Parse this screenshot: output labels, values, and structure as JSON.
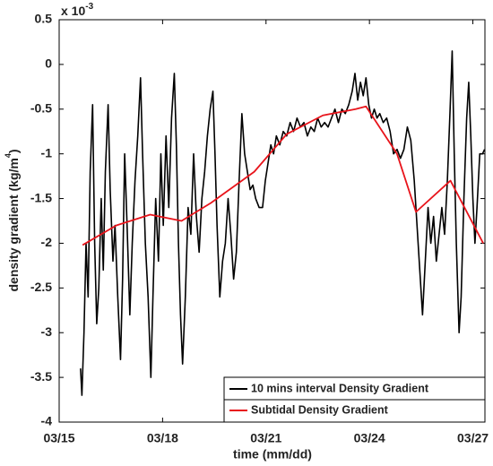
{
  "chart_data": {
    "type": "line",
    "xlabel": "time (mm/dd)",
    "ylabel": {
      "text": "density gradient (kg/m",
      "exponent": "4",
      "end": ")"
    },
    "y_multiplier": {
      "base": "x 10",
      "exponent": "-3"
    },
    "xlim": [
      15,
      27.35
    ],
    "ylim": [
      -4,
      0.5
    ],
    "xticks": [
      {
        "value": 15,
        "label": "03/15"
      },
      {
        "value": 18,
        "label": "03/18"
      },
      {
        "value": 21,
        "label": "03/21"
      },
      {
        "value": 24,
        "label": "03/24"
      },
      {
        "value": 27,
        "label": "03/27"
      }
    ],
    "yticks": [
      0.5,
      0,
      -0.5,
      -1,
      -1.5,
      -2,
      -2.5,
      -3,
      -3.5,
      -4
    ],
    "grid": false,
    "legend": "lower right",
    "series": [
      {
        "name": "10 mins interval Density Gradient",
        "color": "#000000",
        "x": [
          15.62,
          15.66,
          15.72,
          15.78,
          15.84,
          15.9,
          15.97,
          16.03,
          16.09,
          16.15,
          16.22,
          16.28,
          16.34,
          16.42,
          16.48,
          16.56,
          16.62,
          16.7,
          16.78,
          16.84,
          16.9,
          16.97,
          17.05,
          17.12,
          17.2,
          17.28,
          17.36,
          17.42,
          17.5,
          17.58,
          17.66,
          17.72,
          17.8,
          17.88,
          17.95,
          18.02,
          18.1,
          18.18,
          18.26,
          18.34,
          18.4,
          18.46,
          18.52,
          18.58,
          18.66,
          18.74,
          18.82,
          18.9,
          18.98,
          19.06,
          19.14,
          19.22,
          19.3,
          19.38,
          19.46,
          19.52,
          19.58,
          19.66,
          19.74,
          19.82,
          19.9,
          19.98,
          20.06,
          20.14,
          20.22,
          20.3,
          20.38,
          20.46,
          20.54,
          20.62,
          20.7,
          20.8,
          20.9,
          20.98,
          21.06,
          21.14,
          21.22,
          21.3,
          21.4,
          21.5,
          21.6,
          21.7,
          21.8,
          21.9,
          22.0,
          22.1,
          22.2,
          22.3,
          22.4,
          22.5,
          22.6,
          22.7,
          22.8,
          22.9,
          23.0,
          23.1,
          23.2,
          23.3,
          23.4,
          23.5,
          23.58,
          23.66,
          23.74,
          23.82,
          23.9,
          23.98,
          24.06,
          24.14,
          24.22,
          24.3,
          24.4,
          24.5,
          24.6,
          24.7,
          24.8,
          24.9,
          25.0,
          25.1,
          25.2,
          25.3,
          25.38,
          25.46,
          25.54,
          25.62,
          25.7,
          25.78,
          25.86,
          25.94,
          26.02,
          26.1,
          26.18,
          26.26,
          26.34,
          26.4,
          26.46,
          26.52,
          26.6,
          26.66,
          26.74,
          26.82,
          26.88,
          26.94,
          27.0,
          27.06,
          27.12,
          27.2,
          27.28,
          27.34
        ],
        "values": [
          -3.4,
          -3.7,
          -3.0,
          -2.0,
          -2.6,
          -1.2,
          -0.45,
          -2.0,
          -2.9,
          -2.5,
          -1.5,
          -2.3,
          -1.2,
          -0.45,
          -1.4,
          -2.2,
          -1.8,
          -2.6,
          -3.3,
          -2.4,
          -1.0,
          -1.8,
          -2.8,
          -2.0,
          -1.3,
          -0.8,
          -0.15,
          -1.0,
          -2.0,
          -2.6,
          -3.5,
          -2.6,
          -1.5,
          -2.2,
          -1.0,
          -1.8,
          -0.8,
          -1.6,
          -0.6,
          -0.1,
          -0.9,
          -2.0,
          -2.8,
          -3.35,
          -2.6,
          -1.6,
          -1.9,
          -1.0,
          -1.7,
          -2.1,
          -1.5,
          -1.2,
          -0.8,
          -0.5,
          -0.3,
          -1.0,
          -1.8,
          -2.6,
          -2.2,
          -2.0,
          -1.5,
          -1.9,
          -2.4,
          -2.1,
          -1.3,
          -0.55,
          -1.0,
          -1.2,
          -1.4,
          -1.35,
          -1.5,
          -1.6,
          -1.6,
          -1.3,
          -1.1,
          -0.9,
          -1.0,
          -0.8,
          -0.9,
          -0.75,
          -0.8,
          -0.65,
          -0.75,
          -0.6,
          -0.7,
          -0.65,
          -0.8,
          -0.7,
          -0.75,
          -0.6,
          -0.7,
          -0.65,
          -0.7,
          -0.6,
          -0.5,
          -0.65,
          -0.5,
          -0.55,
          -0.45,
          -0.3,
          -0.1,
          -0.4,
          -0.2,
          -0.35,
          -0.15,
          -0.45,
          -0.6,
          -0.5,
          -0.6,
          -0.55,
          -0.65,
          -0.6,
          -0.75,
          -1.0,
          -0.95,
          -1.05,
          -0.95,
          -0.7,
          -0.85,
          -1.3,
          -1.8,
          -2.3,
          -2.8,
          -2.2,
          -1.6,
          -2.0,
          -1.7,
          -2.2,
          -1.9,
          -1.6,
          -1.9,
          -1.3,
          -0.5,
          0.15,
          -1.0,
          -2.0,
          -3.0,
          -2.6,
          -1.5,
          -0.6,
          -0.2,
          -0.8,
          -1.5,
          -2.0,
          -1.6,
          -1.0,
          -1.0,
          -0.95
        ]
      },
      {
        "name": "Subtidal Density Gradient",
        "color": "#e8141b",
        "x": [
          15.68,
          16.66,
          17.64,
          18.55,
          19.4,
          20.66,
          21.6,
          22.65,
          23.6,
          23.9,
          24.8,
          25.35,
          26.35,
          27.3
        ],
        "values": [
          -2.02,
          -1.8,
          -1.68,
          -1.75,
          -1.55,
          -1.2,
          -0.78,
          -0.57,
          -0.5,
          -0.47,
          -1.0,
          -1.65,
          -1.3,
          -2.0
        ]
      }
    ]
  }
}
